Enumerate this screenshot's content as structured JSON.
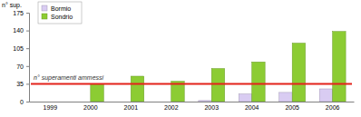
{
  "chart_data": {
    "type": "bar",
    "y_label": "n° sup.",
    "categories": [
      "1999",
      "2000",
      "2001",
      "2002",
      "2003",
      "2004",
      "2005",
      "2006"
    ],
    "series": [
      {
        "name": "Bormio",
        "color": "#d9ccf2",
        "values": [
          0,
          0,
          0,
          0,
          2,
          15,
          18,
          25
        ]
      },
      {
        "name": "Sondrio",
        "color": "#8ccc33",
        "values": [
          0,
          35,
          50,
          40,
          65,
          78,
          115,
          138
        ]
      }
    ],
    "ylim": [
      0,
      175
    ],
    "yticks": [
      0,
      35,
      70,
      105,
      140,
      175
    ],
    "grid": false,
    "legend": "upper left",
    "annotations": [
      {
        "text": "n° superamenti ammessi",
        "y": 35,
        "color": "#e3221b"
      }
    ]
  }
}
